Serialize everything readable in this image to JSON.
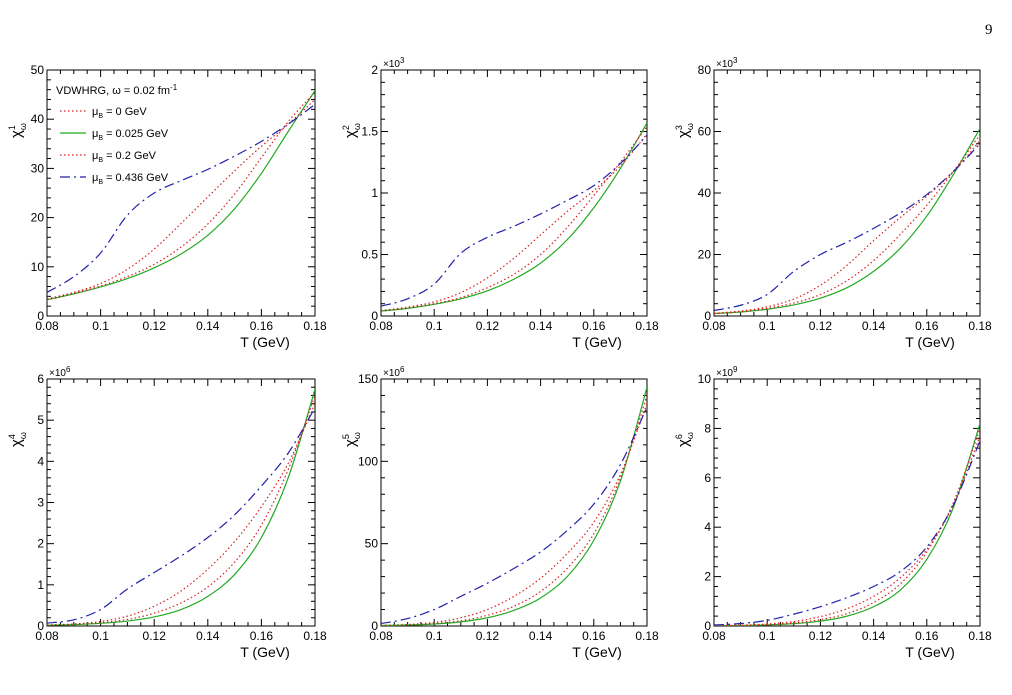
{
  "page": {
    "number": "9"
  },
  "legend": {
    "header": "VDWHRG,   ω = 0.02 fm",
    "header_sup": "-1",
    "entries": [
      {
        "label": "μ",
        "sub": "B",
        "rest": " = 0 GeV"
      },
      {
        "label": "μ",
        "sub": "B",
        "rest": " = 0.025 GeV"
      },
      {
        "label": "μ",
        "sub": "B",
        "rest": " = 0.2 GeV"
      },
      {
        "label": "μ",
        "sub": "B",
        "rest": " = 0.436 GeV"
      }
    ]
  },
  "styles": {
    "series_colors": [
      "#d62020",
      "#22aa22",
      "#d62020",
      "#2222aa"
    ],
    "series_dashes": [
      "1.5,2.5",
      "",
      "1.5,2.5",
      "10,4,2,4"
    ]
  },
  "chart_data": [
    {
      "type": "line",
      "ylabel": "χ",
      "ylabel_sup": "1",
      "ylabel_sub": "ω",
      "xlabel": "T (GeV)",
      "xlim": [
        0.08,
        0.18
      ],
      "xticks": [
        "0.08",
        "0.1",
        "0.12",
        "0.14",
        "0.16",
        "0.18"
      ],
      "ylim": [
        0,
        50
      ],
      "yticks": [
        0,
        10,
        20,
        30,
        40,
        50
      ],
      "ytick_labels": [
        "0",
        "10",
        "20",
        "30",
        "40",
        "50"
      ],
      "multiplier": "",
      "multiplier_exp": "",
      "x": [
        0.08,
        0.09,
        0.1,
        0.11,
        0.12,
        0.13,
        0.14,
        0.15,
        0.16,
        0.17,
        0.18
      ],
      "series": [
        {
          "values": [
            3.3,
            4.6,
            6.1,
            8.0,
            10.5,
            14.0,
            18.7,
            24.8,
            32.2,
            39.5,
            45.5
          ]
        },
        {
          "values": [
            3.3,
            4.5,
            5.9,
            7.6,
            9.8,
            12.6,
            16.4,
            21.8,
            29.0,
            37.5,
            45.8
          ]
        },
        {
          "values": [
            3.5,
            4.8,
            6.6,
            9.5,
            13.6,
            18.8,
            24.2,
            29.5,
            34.5,
            39.0,
            44.0
          ]
        },
        {
          "values": [
            4.8,
            8.0,
            12.8,
            20.5,
            25.0,
            27.5,
            29.8,
            32.5,
            35.5,
            39.0,
            43.0
          ]
        }
      ]
    },
    {
      "type": "line",
      "ylabel": "χ",
      "ylabel_sup": "2",
      "ylabel_sub": "ω",
      "xlabel": "T (GeV)",
      "xlim": [
        0.08,
        0.18
      ],
      "xticks": [
        "0.08",
        "0.1",
        "0.12",
        "0.14",
        "0.16",
        "0.18"
      ],
      "ylim": [
        0,
        2000
      ],
      "yticks": [
        0,
        500,
        1000,
        1500,
        2000
      ],
      "ytick_labels": [
        "0",
        "0.5",
        "1",
        "1.5",
        "2"
      ],
      "multiplier": "×10",
      "multiplier_exp": "3",
      "x": [
        0.08,
        0.09,
        0.1,
        0.11,
        0.12,
        0.13,
        0.14,
        0.15,
        0.16,
        0.17,
        0.18
      ],
      "series": [
        {
          "values": [
            40,
            65,
            100,
            150,
            230,
            340,
            500,
            720,
            980,
            1250,
            1540
          ]
        },
        {
          "values": [
            40,
            62,
            95,
            140,
            205,
            300,
            430,
            620,
            880,
            1200,
            1570
          ]
        },
        {
          "values": [
            45,
            72,
            115,
            190,
            310,
            470,
            660,
            850,
            1020,
            1220,
            1480
          ]
        },
        {
          "values": [
            80,
            140,
            260,
            510,
            640,
            730,
            830,
            940,
            1060,
            1240,
            1470
          ]
        }
      ]
    },
    {
      "type": "line",
      "ylabel": "χ",
      "ylabel_sup": "3",
      "ylabel_sub": "ω",
      "xlabel": "T (GeV)",
      "xlim": [
        0.08,
        0.18
      ],
      "xticks": [
        "0.08",
        "0.1",
        "0.12",
        "0.14",
        "0.16",
        "0.18"
      ],
      "ylim": [
        0,
        80000
      ],
      "yticks": [
        0,
        20000,
        40000,
        60000,
        80000
      ],
      "ytick_labels": [
        "0",
        "20",
        "40",
        "60",
        "80"
      ],
      "multiplier": "×10",
      "multiplier_exp": "3",
      "x": [
        0.08,
        0.09,
        0.1,
        0.11,
        0.12,
        0.13,
        0.14,
        0.15,
        0.16,
        0.17,
        0.18
      ],
      "series": [
        {
          "values": [
            800,
            1400,
            2500,
            4200,
            7000,
            11500,
            18000,
            26500,
            36000,
            47000,
            59000
          ]
        },
        {
          "values": [
            800,
            1300,
            2200,
            3600,
            5800,
            9200,
            14500,
            22000,
            32500,
            46000,
            61000
          ]
        },
        {
          "values": [
            900,
            1600,
            3000,
            5500,
            10000,
            16500,
            24500,
            32000,
            39000,
            47000,
            57000
          ]
        },
        {
          "values": [
            1800,
            3500,
            7000,
            14500,
            20000,
            24000,
            28500,
            33500,
            39500,
            47000,
            56000
          ]
        }
      ]
    },
    {
      "type": "line",
      "ylabel": "χ",
      "ylabel_sup": "4",
      "ylabel_sub": "ω",
      "xlabel": "T (GeV)",
      "xlim": [
        0.08,
        0.18
      ],
      "xticks": [
        "0.08",
        "0.1",
        "0.12",
        "0.14",
        "0.16",
        "0.18"
      ],
      "ylim": [
        0,
        6000000
      ],
      "yticks": [
        0,
        1000000,
        2000000,
        3000000,
        4000000,
        5000000,
        6000000
      ],
      "ytick_labels": [
        "0",
        "1",
        "2",
        "3",
        "4",
        "5",
        "6"
      ],
      "multiplier": "×10",
      "multiplier_exp": "6",
      "x": [
        0.08,
        0.09,
        0.1,
        0.11,
        0.12,
        0.13,
        0.14,
        0.15,
        0.16,
        0.17,
        0.18
      ],
      "series": [
        {
          "values": [
            20000,
            40000,
            80000,
            160000,
            310000,
            560000,
            950000,
            1550000,
            2450000,
            3800000,
            5600000
          ]
        },
        {
          "values": [
            20000,
            35000,
            65000,
            120000,
            220000,
            400000,
            720000,
            1250000,
            2150000,
            3600000,
            5750000
          ]
        },
        {
          "values": [
            25000,
            50000,
            110000,
            240000,
            480000,
            850000,
            1380000,
            2050000,
            2900000,
            3950000,
            5400000
          ]
        },
        {
          "values": [
            70000,
            150000,
            400000,
            900000,
            1300000,
            1700000,
            2150000,
            2700000,
            3400000,
            4200000,
            5300000
          ]
        }
      ]
    },
    {
      "type": "line",
      "ylabel": "χ",
      "ylabel_sup": "5",
      "ylabel_sub": "ω",
      "xlabel": "T (GeV)",
      "xlim": [
        0.08,
        0.18
      ],
      "xticks": [
        "0.08",
        "0.1",
        "0.12",
        "0.14",
        "0.16",
        "0.18"
      ],
      "ylim": [
        0,
        150000000
      ],
      "yticks": [
        0,
        50000000,
        100000000,
        150000000
      ],
      "ytick_labels": [
        "0",
        "50",
        "100",
        "150"
      ],
      "multiplier": "×10",
      "multiplier_exp": "6",
      "x": [
        0.08,
        0.09,
        0.1,
        0.11,
        0.12,
        0.13,
        0.14,
        0.15,
        0.16,
        0.17,
        0.18
      ],
      "series": [
        {
          "values": [
            300000,
            700000,
            1500000,
            3200000,
            6500000,
            12000000,
            21000000,
            35000000,
            56000000,
            90000000,
            140000000
          ]
        },
        {
          "values": [
            300000,
            600000,
            1200000,
            2500000,
            5000000,
            9500000,
            17000000,
            30000000,
            52000000,
            88000000,
            145000000
          ]
        },
        {
          "values": [
            400000,
            900000,
            2200000,
            5000000,
            10000000,
            18000000,
            29000000,
            44000000,
            63000000,
            92000000,
            135000000
          ]
        },
        {
          "values": [
            1500000,
            4500000,
            10000000,
            18000000,
            26000000,
            35000000,
            45000000,
            58000000,
            74000000,
            98000000,
            133000000
          ]
        }
      ]
    },
    {
      "type": "line",
      "ylabel": "χ",
      "ylabel_sup": "6",
      "ylabel_sub": "ω",
      "xlabel": "T (GeV)",
      "xlim": [
        0.08,
        0.18
      ],
      "xticks": [
        "0.08",
        "0.1",
        "0.12",
        "0.14",
        "0.16",
        "0.18"
      ],
      "ylim": [
        0,
        10000000000
      ],
      "yticks": [
        0,
        2000000000,
        4000000000,
        6000000000,
        8000000000,
        10000000000
      ],
      "ytick_labels": [
        "0",
        "2",
        "4",
        "6",
        "8",
        "10"
      ],
      "multiplier": "×10",
      "multiplier_exp": "9",
      "x": [
        0.08,
        0.09,
        0.1,
        0.11,
        0.12,
        0.13,
        0.14,
        0.15,
        0.16,
        0.17,
        0.18
      ],
      "series": [
        {
          "values": [
            10000000,
            25000000,
            55000000,
            120000000,
            260000000,
            500000000,
            950000000,
            1700000000,
            3000000000,
            5000000000,
            8000000000
          ]
        },
        {
          "values": [
            10000000,
            20000000,
            45000000,
            95000000,
            200000000,
            400000000,
            780000000,
            1450000000,
            2700000000,
            4800000000,
            8200000000
          ]
        },
        {
          "values": [
            15000000,
            35000000,
            80000000,
            180000000,
            380000000,
            700000000,
            1200000000,
            1950000000,
            3100000000,
            4900000000,
            7700000000
          ]
        },
        {
          "values": [
            40000000,
            100000000,
            230000000,
            480000000,
            780000000,
            1150000000,
            1600000000,
            2200000000,
            3200000000,
            4900000000,
            7500000000
          ]
        }
      ]
    }
  ]
}
